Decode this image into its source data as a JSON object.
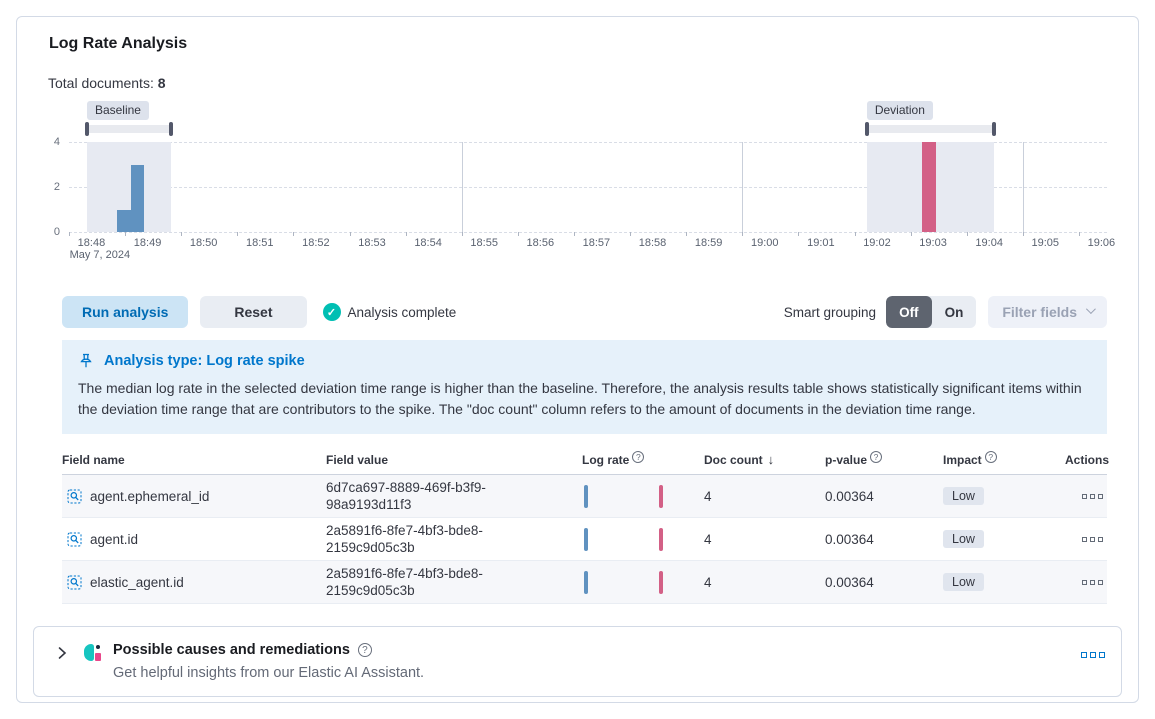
{
  "icons": {
    "question": "?",
    "sort_desc": "↓",
    "check": "✓"
  },
  "header": {
    "title": "Log Rate Analysis",
    "total_documents_label": "Total documents:",
    "total_documents_value": "8"
  },
  "chart_data": {
    "type": "bar",
    "title": "Document count per minute histogram with baseline and deviation brushes",
    "x_ticks": [
      "18:48",
      "18:49",
      "18:50",
      "18:51",
      "18:52",
      "18:53",
      "18:54",
      "18:55",
      "18:56",
      "18:57",
      "18:58",
      "18:59",
      "19:00",
      "19:01",
      "19:02",
      "19:03",
      "19:04",
      "19:05",
      "19:06"
    ],
    "date_label": "May 7, 2024",
    "y_ticks": [
      "4",
      "2",
      "0"
    ],
    "ylim": [
      0,
      4
    ],
    "total_minutes": 18.5,
    "gridline_minutes": [
      7,
      12,
      17
    ],
    "baseline": {
      "label": "Baseline",
      "start": 0.32,
      "end": 1.81
    },
    "deviation": {
      "label": "Deviation",
      "start": 14.22,
      "end": 16.48
    },
    "bars": [
      {
        "start": 0.85,
        "end": 1.1,
        "value": 1,
        "series": "baseline"
      },
      {
        "start": 1.1,
        "end": 1.34,
        "value": 3,
        "series": "baseline"
      },
      {
        "start": 15.21,
        "end": 15.46,
        "value": 4,
        "series": "deviation"
      }
    ],
    "colors": {
      "baseline_bar": "#6092C0",
      "deviation_bar": "#D36086",
      "region": "#E7EAF2",
      "brush_track": "#E8EAEF",
      "brush_handle": "#53586A"
    },
    "legend_position": "none",
    "grid": "horizontal-dashed"
  },
  "controls": {
    "run_label": "Run analysis",
    "reset_label": "Reset",
    "status_text": "Analysis complete",
    "smart_grouping_label": "Smart grouping",
    "off_label": "Off",
    "on_label": "On",
    "filter_fields_label": "Filter fields"
  },
  "callout": {
    "title": "Analysis type: Log rate spike",
    "body": "The median log rate in the selected deviation time range is higher than the baseline. Therefore, the analysis results table shows statistically significant items within the deviation time range that are contributors to the spike. The \"doc count\" column refers to the amount of documents in the deviation time range."
  },
  "table": {
    "headers": [
      "Field name",
      "Field value",
      "Log rate",
      "Doc count",
      "p-value",
      "Impact",
      "Actions"
    ],
    "rows": [
      {
        "field_name": "agent.ephemeral_id",
        "field_value": "6d7ca697-8889-469f-b3f9-98a9193d11f3",
        "doc_count": "4",
        "p_value": "0.00364",
        "impact": "Low"
      },
      {
        "field_name": "agent.id",
        "field_value": "2a5891f6-8fe7-4bf3-bde8-2159c9d05c3b",
        "doc_count": "4",
        "p_value": "0.00364",
        "impact": "Low"
      },
      {
        "field_name": "elastic_agent.id",
        "field_value": "2a5891f6-8fe7-4bf3-bde8-2159c9d05c3b",
        "doc_count": "4",
        "p_value": "0.00364",
        "impact": "Low"
      }
    ]
  },
  "causes_panel": {
    "title": "Possible causes and remediations",
    "subtitle": "Get helpful insights from our Elastic AI Assistant."
  }
}
